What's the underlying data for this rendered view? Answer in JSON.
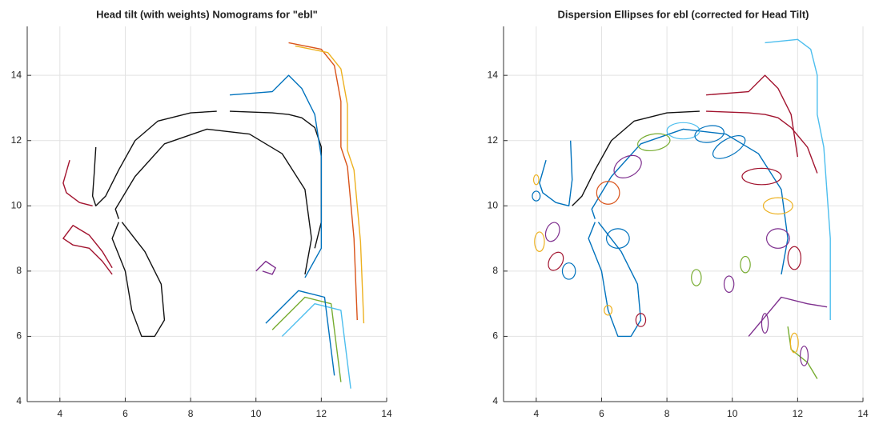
{
  "chart_data": [
    {
      "type": "line",
      "title": "Head tilt (with weights) Nomograms for \"ebl\"",
      "xlim": [
        3,
        14
      ],
      "ylim": [
        4,
        15.5
      ],
      "xticks": [
        4,
        6,
        8,
        10,
        12,
        14
      ],
      "yticks": [
        4,
        6,
        8,
        10,
        12,
        14
      ],
      "grid": true,
      "series": [
        {
          "color": "#A2142F",
          "x": [
            4.3,
            4.1,
            4.2,
            4.6,
            5.0
          ],
          "values": [
            11.4,
            10.7,
            10.4,
            10.1,
            10.0
          ]
        },
        {
          "color": "#111111",
          "x": [
            5.1,
            5.05,
            5.0,
            5.1,
            5.4,
            5.8,
            6.3,
            7.0,
            8.0,
            8.8
          ],
          "values": [
            11.8,
            11.0,
            10.3,
            10.0,
            10.3,
            11.1,
            12.0,
            12.6,
            12.85,
            12.9
          ]
        },
        {
          "color": "#111111",
          "x": [
            5.8,
            5.7,
            6.3,
            7.2,
            8.5,
            9.8,
            10.8,
            11.5,
            11.7,
            11.5
          ],
          "values": [
            9.6,
            9.9,
            10.9,
            11.9,
            12.35,
            12.2,
            11.6,
            10.5,
            9.0,
            7.9
          ]
        },
        {
          "color": "#A2142F",
          "x": [
            5.6,
            5.3,
            4.9,
            4.4,
            4.1,
            4.4,
            4.9,
            5.3,
            5.6
          ],
          "values": [
            7.9,
            8.3,
            8.7,
            8.8,
            9.0,
            9.4,
            9.1,
            8.6,
            8.1
          ]
        },
        {
          "color": "#111111",
          "x": [
            5.9,
            6.6,
            7.1,
            7.2,
            6.9,
            6.5,
            6.2,
            6.0,
            5.6,
            5.8
          ],
          "values": [
            9.5,
            8.6,
            7.6,
            6.5,
            6.0,
            6.0,
            6.8,
            8.0,
            9.0,
            9.5
          ]
        },
        {
          "color": "#111111",
          "x": [
            9.2,
            10.5,
            11.0,
            11.4,
            11.8,
            12.0,
            12.0,
            11.8
          ],
          "values": [
            12.9,
            12.85,
            12.8,
            12.7,
            12.4,
            11.8,
            9.5,
            8.7
          ]
        },
        {
          "color": "#0072BD",
          "x": [
            9.2,
            10.5,
            11.0,
            11.4,
            11.8,
            12.0,
            12.0,
            12.0,
            11.5
          ],
          "values": [
            13.4,
            13.5,
            14.0,
            13.6,
            12.8,
            11.5,
            9.5,
            8.7,
            7.8
          ]
        },
        {
          "color": "#D95319",
          "x": [
            11.0,
            12.0,
            12.4,
            12.6,
            12.6,
            12.8,
            13.0,
            13.1
          ],
          "values": [
            15.0,
            14.8,
            14.3,
            13.2,
            11.8,
            11.2,
            9.0,
            6.5
          ]
        },
        {
          "color": "#EDB120",
          "x": [
            11.2,
            12.2,
            12.6,
            12.8,
            12.8,
            13.0,
            13.2,
            13.3
          ],
          "values": [
            14.9,
            14.7,
            14.2,
            13.1,
            11.7,
            11.1,
            8.9,
            6.4
          ]
        },
        {
          "color": "#7E2F8E",
          "x": [
            10.0,
            10.3,
            10.6,
            10.5,
            10.2
          ],
          "values": [
            8.0,
            8.3,
            8.1,
            7.9,
            8.0
          ]
        },
        {
          "color": "#77AC30",
          "x": [
            10.5,
            11.5,
            12.3,
            12.6
          ],
          "values": [
            6.2,
            7.2,
            7.0,
            4.6
          ]
        },
        {
          "color": "#4DBEEE",
          "x": [
            10.8,
            11.8,
            12.6,
            12.9
          ],
          "values": [
            6.0,
            7.0,
            6.8,
            4.4
          ]
        },
        {
          "color": "#0072BD",
          "x": [
            10.3,
            11.3,
            12.1,
            12.4
          ],
          "values": [
            6.4,
            7.4,
            7.2,
            4.8
          ]
        }
      ]
    },
    {
      "type": "line",
      "title": "Dispersion Ellipses for ebl (corrected for Head Tilt)",
      "xlim": [
        3,
        14
      ],
      "ylim": [
        4,
        15.5
      ],
      "xticks": [
        4,
        6,
        8,
        10,
        12,
        14
      ],
      "yticks": [
        4,
        6,
        8,
        10,
        12,
        14
      ],
      "grid": true,
      "series": [
        {
          "color": "#0072BD",
          "x": [
            4.3,
            4.1,
            4.2,
            4.6,
            5.0,
            5.1,
            5.05
          ],
          "values": [
            11.4,
            10.7,
            10.4,
            10.1,
            10.0,
            10.8,
            12.0
          ]
        },
        {
          "color": "#111111",
          "x": [
            5.1,
            5.4,
            5.8,
            6.3,
            7.0,
            8.0,
            9.0
          ],
          "values": [
            10.0,
            10.3,
            11.1,
            12.0,
            12.6,
            12.85,
            12.9
          ]
        },
        {
          "color": "#0072BD",
          "x": [
            5.8,
            5.7,
            6.3,
            7.2,
            8.5,
            9.8,
            10.8,
            11.5,
            11.7,
            11.5
          ],
          "values": [
            9.6,
            9.9,
            10.9,
            11.9,
            12.35,
            12.2,
            11.6,
            10.5,
            9.0,
            7.9
          ]
        },
        {
          "color": "#0072BD",
          "x": [
            5.9,
            6.6,
            7.1,
            7.2,
            6.9,
            6.5,
            6.2,
            6.0,
            5.6,
            5.8
          ],
          "values": [
            9.5,
            8.6,
            7.6,
            6.5,
            6.0,
            6.0,
            6.8,
            8.0,
            9.0,
            9.5
          ]
        },
        {
          "color": "#A2142F",
          "x": [
            9.2,
            10.5,
            11.0,
            11.4,
            11.8,
            12.3,
            12.6
          ],
          "values": [
            12.9,
            12.85,
            12.8,
            12.7,
            12.4,
            11.8,
            11.0
          ]
        },
        {
          "color": "#A2142F",
          "x": [
            9.2,
            10.5,
            11.0,
            11.4,
            11.8,
            12.0
          ],
          "values": [
            13.4,
            13.5,
            14.0,
            13.6,
            12.8,
            11.5
          ]
        },
        {
          "color": "#4DBEEE",
          "x": [
            11.0,
            12.0,
            12.4,
            12.6,
            12.6,
            12.8,
            13.0,
            13.0
          ],
          "values": [
            15.0,
            15.1,
            14.8,
            14.0,
            12.8,
            11.8,
            9.0,
            6.5
          ]
        },
        {
          "color": "#7E2F8E",
          "x": [
            10.5,
            11.5,
            12.3,
            12.9
          ],
          "values": [
            6.0,
            7.2,
            7.0,
            6.9
          ]
        },
        {
          "color": "#77AC30",
          "x": [
            11.7,
            11.8,
            12.3,
            12.6
          ],
          "values": [
            6.3,
            5.6,
            5.2,
            4.7
          ]
        }
      ],
      "ellipses": [
        {
          "color": "#0072BD",
          "x": 4.0,
          "y": 10.3,
          "rx": 0.12,
          "ry": 0.15,
          "angle": 0
        },
        {
          "color": "#EDB120",
          "x": 4.0,
          "y": 10.8,
          "rx": 0.08,
          "ry": 0.15,
          "angle": 0
        },
        {
          "color": "#D95319",
          "x": 6.2,
          "y": 10.4,
          "rx": 0.35,
          "ry": 0.35,
          "angle": 0
        },
        {
          "color": "#7E2F8E",
          "x": 6.8,
          "y": 11.2,
          "rx": 0.45,
          "ry": 0.3,
          "angle": -30
        },
        {
          "color": "#77AC30",
          "x": 7.6,
          "y": 11.95,
          "rx": 0.5,
          "ry": 0.25,
          "angle": -10
        },
        {
          "color": "#4DBEEE",
          "x": 8.5,
          "y": 12.3,
          "rx": 0.5,
          "ry": 0.25,
          "angle": 0
        },
        {
          "color": "#0072BD",
          "x": 9.3,
          "y": 12.2,
          "rx": 0.45,
          "ry": 0.25,
          "angle": -10
        },
        {
          "color": "#0072BD",
          "x": 9.9,
          "y": 11.8,
          "rx": 0.55,
          "ry": 0.25,
          "angle": -30
        },
        {
          "color": "#A2142F",
          "x": 10.9,
          "y": 10.9,
          "rx": 0.6,
          "ry": 0.25,
          "angle": 0
        },
        {
          "color": "#EDB120",
          "x": 11.4,
          "y": 10.0,
          "rx": 0.45,
          "ry": 0.25,
          "angle": 0
        },
        {
          "color": "#7E2F8E",
          "x": 11.4,
          "y": 9.0,
          "rx": 0.35,
          "ry": 0.3,
          "angle": 0
        },
        {
          "color": "#A2142F",
          "x": 11.9,
          "y": 8.4,
          "rx": 0.2,
          "ry": 0.35,
          "angle": 0
        },
        {
          "color": "#7E2F8E",
          "x": 4.5,
          "y": 9.2,
          "rx": 0.2,
          "ry": 0.3,
          "angle": 20
        },
        {
          "color": "#EDB120",
          "x": 4.1,
          "y": 8.9,
          "rx": 0.15,
          "ry": 0.3,
          "angle": 0
        },
        {
          "color": "#A2142F",
          "x": 4.6,
          "y": 8.3,
          "rx": 0.2,
          "ry": 0.3,
          "angle": 30
        },
        {
          "color": "#0072BD",
          "x": 5.0,
          "y": 8.0,
          "rx": 0.2,
          "ry": 0.25,
          "angle": 0
        },
        {
          "color": "#0072BD",
          "x": 6.5,
          "y": 9.0,
          "rx": 0.35,
          "ry": 0.3,
          "angle": 0
        },
        {
          "color": "#77AC30",
          "x": 8.9,
          "y": 7.8,
          "rx": 0.15,
          "ry": 0.25,
          "angle": 0
        },
        {
          "color": "#7E2F8E",
          "x": 9.9,
          "y": 7.6,
          "rx": 0.15,
          "ry": 0.25,
          "angle": 0
        },
        {
          "color": "#77AC30",
          "x": 10.4,
          "y": 8.2,
          "rx": 0.15,
          "ry": 0.25,
          "angle": 0
        },
        {
          "color": "#A2142F",
          "x": 7.2,
          "y": 6.5,
          "rx": 0.15,
          "ry": 0.2,
          "angle": 0
        },
        {
          "color": "#EDB120",
          "x": 6.2,
          "y": 6.8,
          "rx": 0.12,
          "ry": 0.15,
          "angle": 0
        },
        {
          "color": "#EDB120",
          "x": 11.9,
          "y": 5.8,
          "rx": 0.12,
          "ry": 0.3,
          "angle": 0
        },
        {
          "color": "#7E2F8E",
          "x": 12.2,
          "y": 5.4,
          "rx": 0.12,
          "ry": 0.3,
          "angle": 0
        },
        {
          "color": "#7E2F8E",
          "x": 11.0,
          "y": 6.4,
          "rx": 0.1,
          "ry": 0.3,
          "angle": 0
        }
      ]
    }
  ]
}
